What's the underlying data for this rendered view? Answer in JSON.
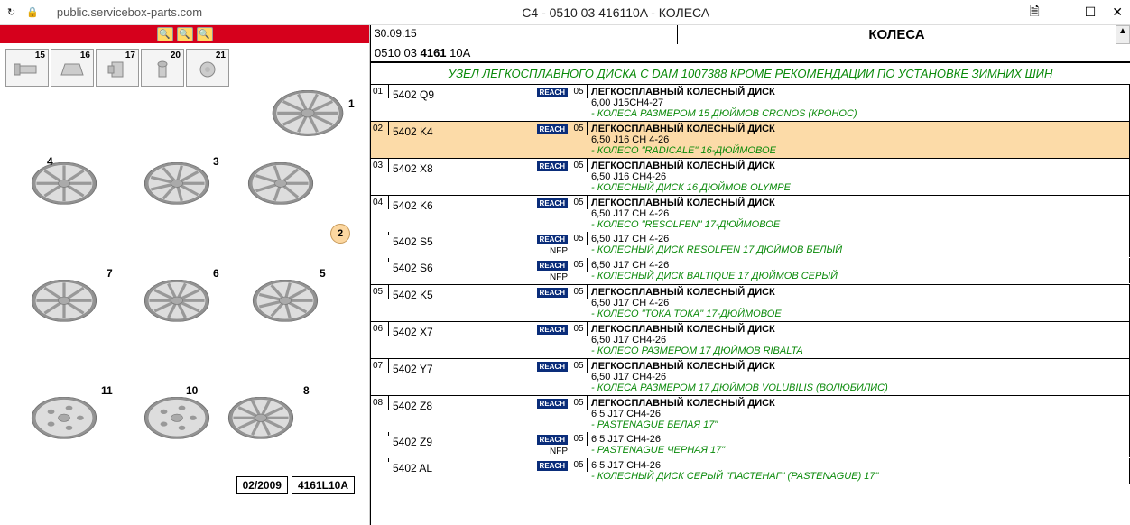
{
  "window": {
    "url": "public.servicebox-parts.com",
    "title": "C4 - 0510 03 416110A - КОЛЕСА"
  },
  "diagram": {
    "thumbs": [
      {
        "num": "15"
      },
      {
        "num": "16"
      },
      {
        "num": "17"
      },
      {
        "num": "20"
      },
      {
        "num": "21"
      }
    ],
    "callout_label": "2",
    "footer_date": "02/2009",
    "footer_code": "4161L10A",
    "wheels": [
      {
        "num": "1"
      },
      {
        "num": "4"
      },
      {
        "num": "3"
      },
      {
        "num": "7"
      },
      {
        "num": "6"
      },
      {
        "num": "5"
      },
      {
        "num": "11"
      },
      {
        "num": "10"
      },
      {
        "num": "8"
      }
    ]
  },
  "header": {
    "date": "30.09.15",
    "code_prefix": "0510 03 ",
    "code_bold": "4161",
    "code_suffix": " 10A",
    "title": "КОЛЕСА",
    "banner": "УЗЕЛ ЛЕГКОСПЛАВНОГО ДИСКА С DAM 1007388 КРОМЕ РЕКОМЕНДАЦИИ ПО УСТАНОВКЕ ЗИМНИХ ШИН"
  },
  "parts": [
    {
      "idx": "01",
      "rows": [
        {
          "ref": "5402 Q9",
          "reach": true,
          "nfp": false,
          "qty": "05",
          "title": "ЛЕГКОСПЛАВНЫЙ КОЛЕСНЫЙ ДИСК",
          "spec": "6,00 J15CH4-27",
          "note": "- КОЛЕСА РАЗМЕРОМ 15 ДЮЙМОВ CRONOS (КРОНОС)"
        }
      ]
    },
    {
      "idx": "02",
      "highlighted": true,
      "rows": [
        {
          "ref": "5402 K4",
          "reach": true,
          "nfp": false,
          "qty": "05",
          "title": "ЛЕГКОСПЛАВНЫЙ КОЛЕСНЫЙ ДИСК",
          "spec": "6,50 J16 CH 4-26",
          "note": "- КОЛЕСО \"RADICALE\" 16-ДЮЙМОВОЕ"
        }
      ]
    },
    {
      "idx": "03",
      "rows": [
        {
          "ref": "5402 X8",
          "reach": true,
          "nfp": false,
          "qty": "05",
          "title": "ЛЕГКОСПЛАВНЫЙ КОЛЕСНЫЙ ДИСК",
          "spec": "6,50 J16 CH4-26",
          "note": "- КОЛЕСНЫЙ ДИСК 16 ДЮЙМОВ OLYMPE"
        }
      ]
    },
    {
      "idx": "04",
      "rows": [
        {
          "ref": "5402 K6",
          "reach": true,
          "nfp": false,
          "qty": "05",
          "title": "ЛЕГКОСПЛАВНЫЙ КОЛЕСНЫЙ ДИСК",
          "spec": "6,50 J17 CH 4-26",
          "note": "- КОЛЕСО \"RESOLFEN\" 17-ДЮЙМОВОЕ"
        },
        {
          "ref": "5402 S5",
          "reach": true,
          "nfp": true,
          "qty": "05",
          "title": "",
          "spec": "6,50 J17 CH 4-26",
          "note": "- КОЛЕСНЫЙ ДИСК RESOLFEN 17 ДЮЙМОВ БЕЛЫЙ"
        },
        {
          "ref": "5402 S6",
          "reach": true,
          "nfp": true,
          "qty": "05",
          "title": "",
          "spec": "6,50 J17 CH 4-26",
          "note": "- КОЛЕСНЫЙ ДИСК BALTIQUE 17 ДЮЙМОВ СЕРЫЙ"
        }
      ]
    },
    {
      "idx": "05",
      "rows": [
        {
          "ref": "5402 K5",
          "reach": true,
          "nfp": false,
          "qty": "05",
          "title": "ЛЕГКОСПЛАВНЫЙ КОЛЕСНЫЙ ДИСК",
          "spec": "6,50 J17 CH 4-26",
          "note": "- КОЛЕСО \"ТОКА ТОКА\" 17-ДЮЙМОВОЕ"
        }
      ]
    },
    {
      "idx": "06",
      "rows": [
        {
          "ref": "5402 X7",
          "reach": true,
          "nfp": false,
          "qty": "05",
          "title": "ЛЕГКОСПЛАВНЫЙ КОЛЕСНЫЙ ДИСК",
          "spec": "6,50 J17 CH4-26",
          "note": "- КОЛЕСО РАЗМЕРОМ 17 ДЮЙМОВ RIBALTA"
        }
      ]
    },
    {
      "idx": "07",
      "rows": [
        {
          "ref": "5402 Y7",
          "reach": true,
          "nfp": false,
          "qty": "05",
          "title": "ЛЕГКОСПЛАВНЫЙ КОЛЕСНЫЙ ДИСК",
          "spec": "6,50 J17 CH4-26",
          "note": "- КОЛЕСА РАЗМЕРОМ 17 ДЮЙМОВ VOLUBILIS (ВОЛЮБИЛИС)"
        }
      ]
    },
    {
      "idx": "08",
      "rows": [
        {
          "ref": "5402 Z8",
          "reach": true,
          "nfp": false,
          "qty": "05",
          "title": "ЛЕГКОСПЛАВНЫЙ КОЛЕСНЫЙ ДИСК",
          "spec": "6 5 J17 CH4-26",
          "note": "- PASTENAGUE БЕЛАЯ 17\""
        },
        {
          "ref": "5402 Z9",
          "reach": true,
          "nfp": true,
          "qty": "05",
          "title": "",
          "spec": "6 5 J17 CH4-26",
          "note": "- PASTENAGUE ЧЕРНАЯ 17\""
        },
        {
          "ref": "5402 AL",
          "reach": true,
          "nfp": false,
          "qty": "05",
          "title": "",
          "spec": "6 5 J17 CH4-26",
          "note": "- КОЛЕСНЫЙ ДИСК СЕРЫЙ \"ПАСТЕНАГ\" (PASTENAGUE) 17\""
        }
      ]
    }
  ]
}
